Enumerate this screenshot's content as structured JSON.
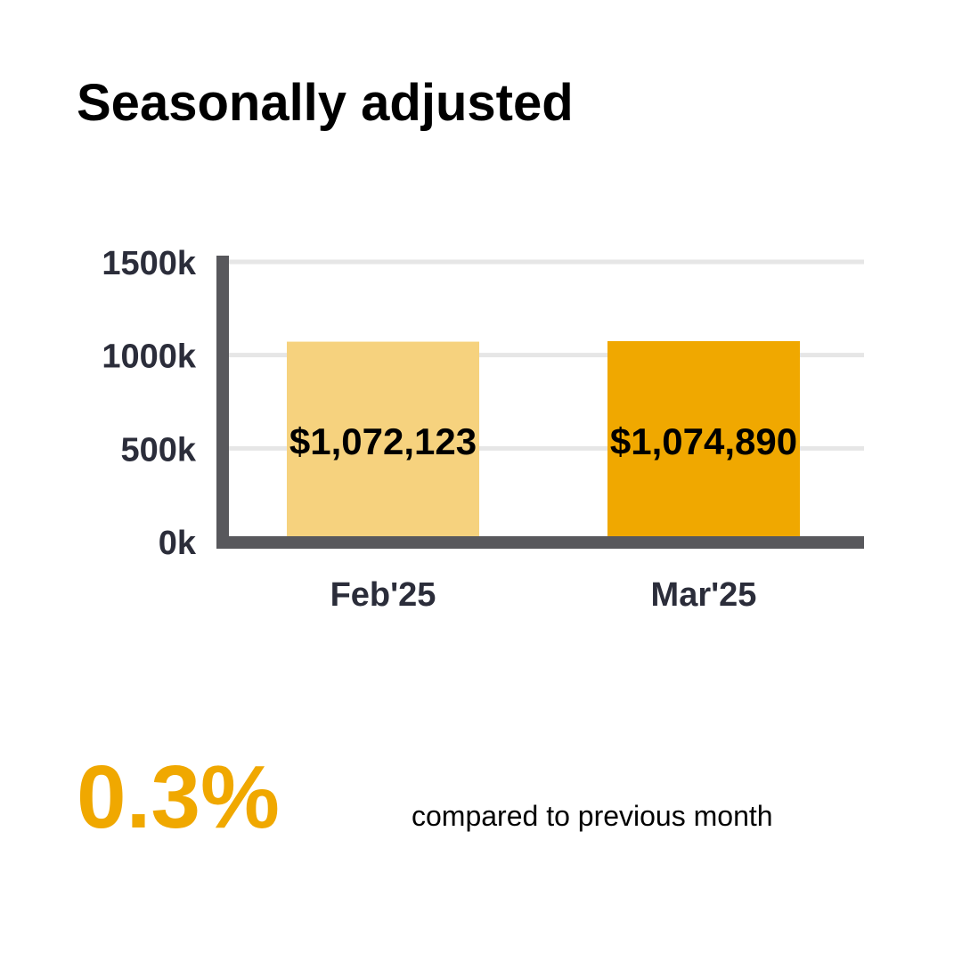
{
  "chart_data": {
    "type": "bar",
    "title": "Seasonally adjusted",
    "categories": [
      "Feb'25",
      "Mar'25"
    ],
    "values": [
      1072123,
      1074890
    ],
    "data_labels": [
      "$1,072,123",
      "$1,074,890"
    ],
    "colors": [
      "#f6d27e",
      "#f0a800"
    ],
    "ylim": [
      0,
      1500000
    ],
    "yticks": [
      0,
      500000,
      1000000,
      1500000
    ],
    "ytick_labels": [
      "0k",
      "500k",
      "1000k",
      "1500k"
    ],
    "grid": true,
    "xlabel": "",
    "ylabel": ""
  },
  "summary": {
    "change": "0.3%",
    "caption": "compared to previous month"
  }
}
